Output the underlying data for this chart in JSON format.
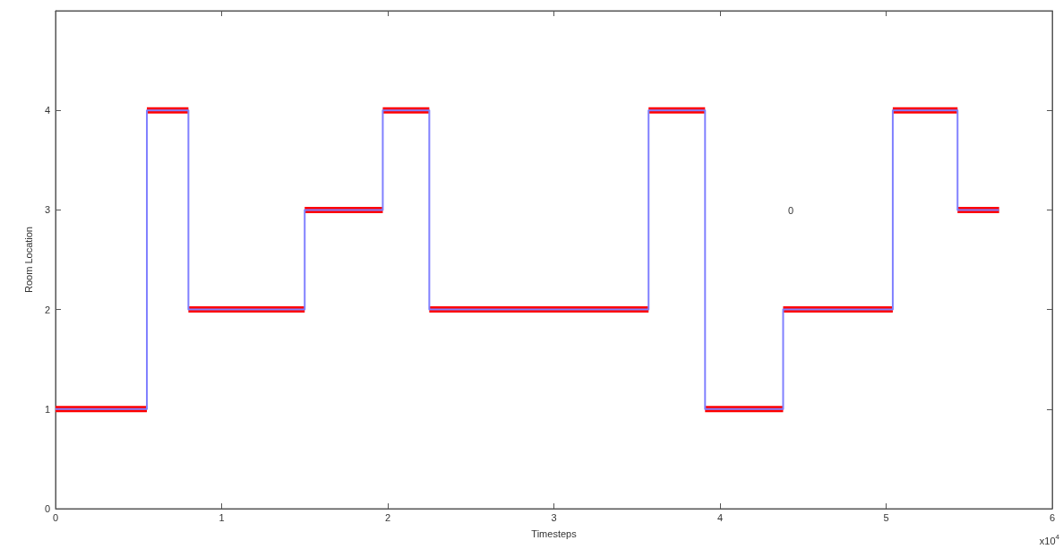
{
  "chart_data": {
    "type": "step",
    "xlabel": "Timesteps",
    "ylabel": "Room Location",
    "annotations": [
      "x10$^{4}$",
      "0"
    ],
    "series": [
      {
        "color": "#ff0000",
        "type": "line",
        "x": [
          0,
          0.55
        ],
        "values": [
          1,
          1
        ]
      },
      {
        "color": "#ff0000",
        "type": "line",
        "x": [
          0.55,
          0.8
        ],
        "values": [
          4,
          4
        ]
      },
      {
        "color": "#ff0000",
        "type": "line",
        "x": [
          0.8,
          1.5
        ],
        "values": [
          2,
          2
        ]
      },
      {
        "color": "#ff0000",
        "type": "line",
        "x": [
          1.5,
          1.97
        ],
        "values": [
          3,
          3
        ]
      },
      {
        "color": "#ff0000",
        "type": "line",
        "x": [
          1.97,
          2.25
        ],
        "values": [
          4,
          4
        ]
      },
      {
        "color": "#ff0000",
        "type": "line",
        "x": [
          2.25,
          3.57
        ],
        "values": [
          2,
          2
        ]
      },
      {
        "color": "#ff0000",
        "type": "line",
        "x": [
          3.57,
          3.91
        ],
        "values": [
          4,
          4
        ]
      },
      {
        "color": "#ff0000",
        "type": "line",
        "x": [
          3.91,
          4.38
        ],
        "values": [
          1,
          1
        ]
      },
      {
        "color": "#ff0000",
        "type": "line",
        "x": [
          4.38,
          5.04
        ],
        "values": [
          2,
          2
        ]
      },
      {
        "color": "#ff0000",
        "type": "line",
        "x": [
          5.04,
          5.43
        ],
        "values": [
          4,
          4
        ]
      },
      {
        "color": "#ff0000",
        "type": "line",
        "x": [
          5.43,
          5.68
        ],
        "values": [
          3,
          3
        ]
      },
      {
        "color": "#8080ff",
        "x": [
          0,
          0.55,
          0.8,
          1.5,
          1.97,
          2.25,
          3.57,
          3.91,
          4.38,
          5.04,
          5.43,
          5.68
        ],
        "values": [
          1,
          4,
          2,
          3,
          4,
          2,
          4,
          1,
          2,
          4,
          3,
          3
        ]
      }
    ],
    "xlim": [
      0,
      6
    ],
    "xticks": [
      0,
      1,
      2,
      3,
      4,
      5,
      6
    ],
    "ylim": [
      0,
      5
    ],
    "yticks": [
      0,
      1,
      2,
      3,
      4
    ],
    "grid": false,
    "marker": "none"
  }
}
